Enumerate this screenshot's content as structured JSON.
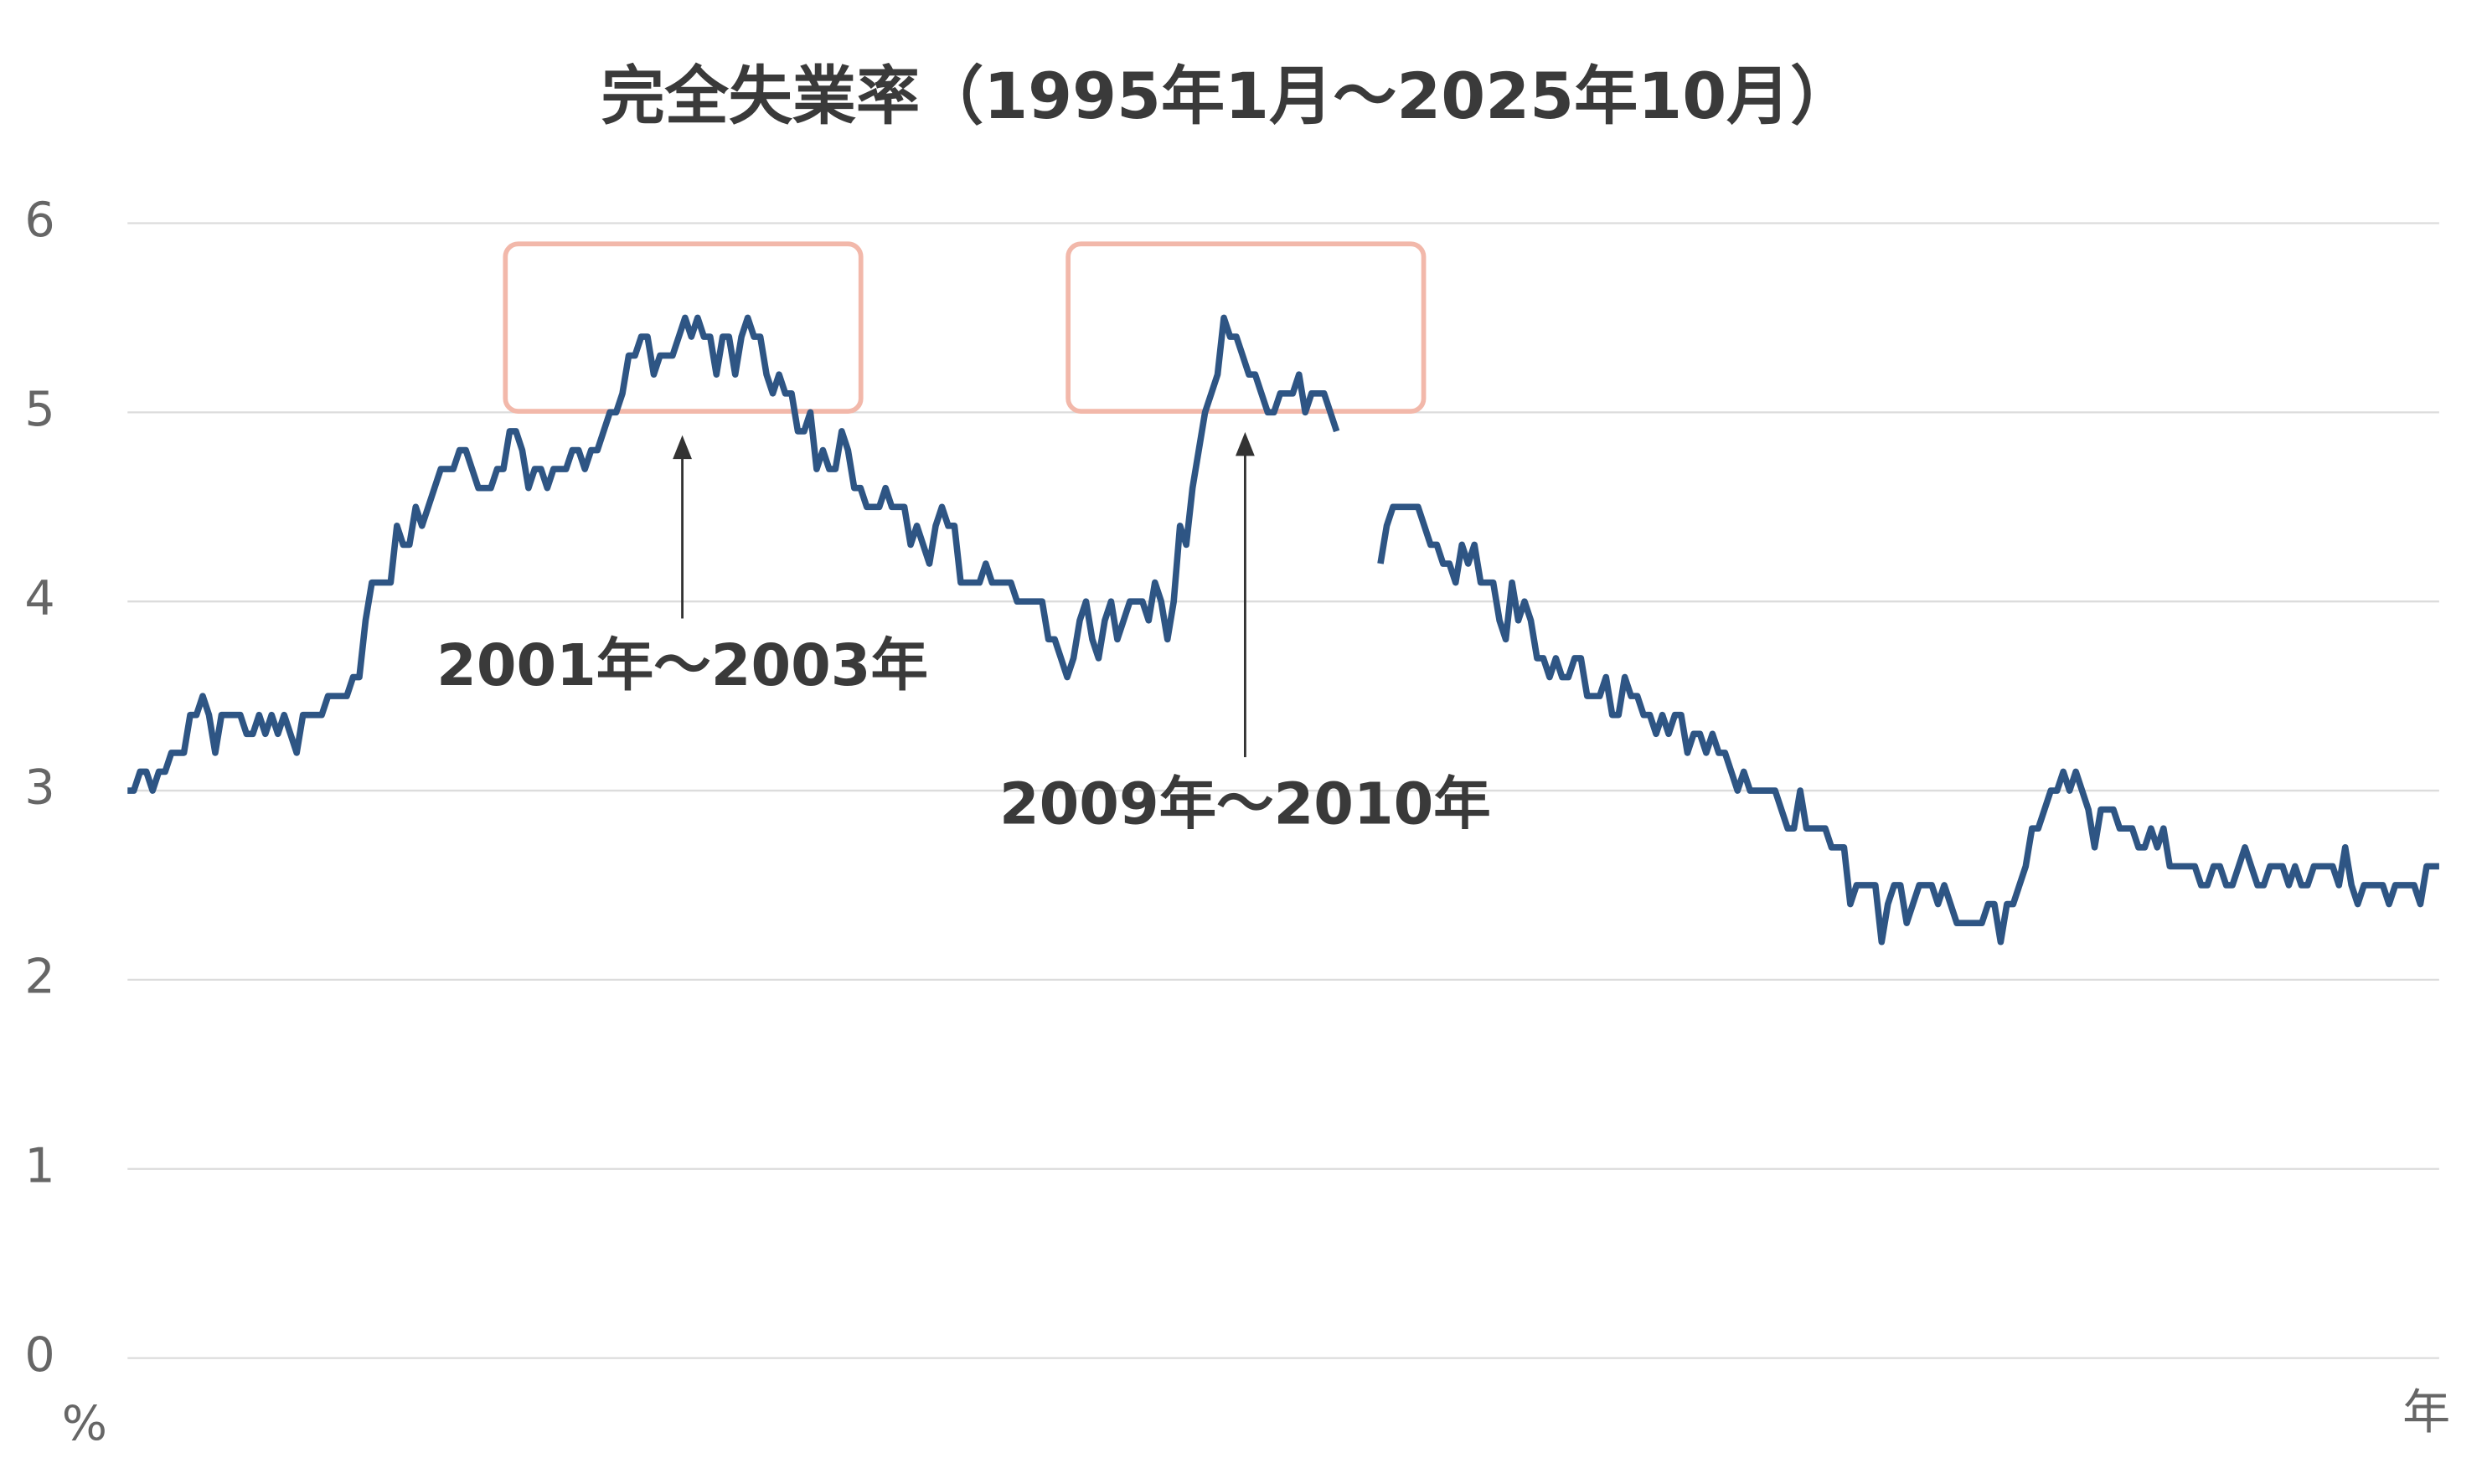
{
  "chart_data": {
    "type": "line",
    "title": "完全失業率（1995年1月〜2025年10月）",
    "x_label": "年",
    "y_label": "%",
    "color": "#2e5584",
    "grid": true,
    "ylim": [
      0,
      6
    ],
    "yticks": [
      0,
      1,
      2,
      3,
      4,
      5,
      6
    ],
    "annotations": [
      "2001年〜2003年",
      "2009年〜2010年"
    ],
    "values": [
      3.0,
      3.0,
      3.1,
      3.1,
      3.0,
      3.1,
      3.1,
      3.2,
      3.2,
      3.2,
      3.4,
      3.4,
      3.5,
      3.4,
      3.2,
      3.4,
      3.4,
      3.4,
      3.4,
      3.3,
      3.3,
      3.4,
      3.3,
      3.4,
      3.3,
      3.4,
      3.3,
      3.2,
      3.4,
      3.4,
      3.4,
      3.4,
      3.5,
      3.5,
      3.5,
      3.5,
      3.6,
      3.6,
      3.9,
      4.1,
      4.1,
      4.1,
      4.1,
      4.4,
      4.3,
      4.3,
      4.5,
      4.4,
      4.5,
      4.6,
      4.7,
      4.7,
      4.7,
      4.8,
      4.8,
      4.7,
      4.6,
      4.6,
      4.6,
      4.7,
      4.7,
      4.9,
      4.9,
      4.8,
      4.6,
      4.7,
      4.7,
      4.6,
      4.7,
      4.7,
      4.7,
      4.8,
      4.8,
      4.7,
      4.8,
      4.8,
      4.9,
      5.0,
      5.0,
      5.1,
      5.3,
      5.3,
      5.4,
      5.4,
      5.2,
      5.3,
      5.3,
      5.3,
      5.4,
      5.5,
      5.4,
      5.5,
      5.4,
      5.4,
      5.2,
      5.4,
      5.4,
      5.2,
      5.4,
      5.5,
      5.4,
      5.4,
      5.2,
      5.1,
      5.2,
      5.1,
      5.1,
      4.9,
      4.9,
      5.0,
      4.7,
      4.8,
      4.7,
      4.7,
      4.9,
      4.8,
      4.6,
      4.6,
      4.5,
      4.5,
      4.5,
      4.6,
      4.5,
      4.5,
      4.5,
      4.3,
      4.4,
      4.3,
      4.2,
      4.4,
      4.5,
      4.4,
      4.4,
      4.1,
      4.1,
      4.1,
      4.1,
      4.2,
      4.1,
      4.1,
      4.1,
      4.1,
      4.0,
      4.0,
      4.0,
      4.0,
      4.0,
      3.8,
      3.8,
      3.7,
      3.6,
      3.7,
      3.9,
      4.0,
      3.8,
      3.7,
      3.9,
      4.0,
      3.8,
      3.9,
      4.0,
      4.0,
      4.0,
      3.9,
      4.1,
      4.0,
      3.8,
      4.0,
      4.4,
      4.3,
      4.6,
      4.8,
      5.0,
      5.1,
      5.2,
      5.5,
      5.4,
      5.4,
      5.3,
      5.2,
      5.2,
      5.1,
      5.0,
      5.0,
      5.1,
      5.1,
      5.1,
      5.2,
      5.0,
      5.1,
      5.1,
      5.1,
      5.0,
      4.9,
      null,
      null,
      null,
      null,
      null,
      null,
      4.2,
      4.4,
      4.5,
      4.5,
      4.5,
      4.5,
      4.5,
      4.4,
      4.3,
      4.3,
      4.2,
      4.2,
      4.1,
      4.3,
      4.2,
      4.3,
      4.1,
      4.1,
      4.1,
      3.9,
      3.8,
      4.1,
      3.9,
      4.0,
      3.9,
      3.7,
      3.7,
      3.6,
      3.7,
      3.6,
      3.6,
      3.7,
      3.7,
      3.5,
      3.5,
      3.5,
      3.6,
      3.4,
      3.4,
      3.6,
      3.5,
      3.5,
      3.4,
      3.4,
      3.3,
      3.4,
      3.3,
      3.4,
      3.4,
      3.2,
      3.3,
      3.3,
      3.2,
      3.3,
      3.2,
      3.2,
      3.1,
      3.0,
      3.1,
      3.0,
      3.0,
      3.0,
      3.0,
      3.0,
      2.9,
      2.8,
      2.8,
      3.0,
      2.8,
      2.8,
      2.8,
      2.8,
      2.7,
      2.7,
      2.7,
      2.4,
      2.5,
      2.5,
      2.5,
      2.5,
      2.2,
      2.4,
      2.5,
      2.5,
      2.3,
      2.4,
      2.5,
      2.5,
      2.5,
      2.4,
      2.5,
      2.4,
      2.3,
      2.3,
      2.3,
      2.3,
      2.3,
      2.4,
      2.4,
      2.2,
      2.4,
      2.4,
      2.5,
      2.6,
      2.8,
      2.8,
      2.9,
      3.0,
      3.0,
      3.1,
      3.0,
      3.1,
      3.0,
      2.9,
      2.7,
      2.9,
      2.9,
      2.9,
      2.8,
      2.8,
      2.8,
      2.7,
      2.7,
      2.8,
      2.7,
      2.8,
      2.6,
      2.6,
      2.6,
      2.6,
      2.6,
      2.5,
      2.5,
      2.6,
      2.6,
      2.5,
      2.5,
      2.6,
      2.7,
      2.6,
      2.5,
      2.5,
      2.6,
      2.6,
      2.6,
      2.5,
      2.6,
      2.5,
      2.5,
      2.6,
      2.6,
      2.6,
      2.6,
      2.5,
      2.7,
      2.5,
      2.4,
      2.5,
      2.5,
      2.5,
      2.5,
      2.4,
      2.5,
      2.5,
      2.5,
      2.5,
      2.4,
      2.6,
      2.6,
      2.6
    ]
  }
}
